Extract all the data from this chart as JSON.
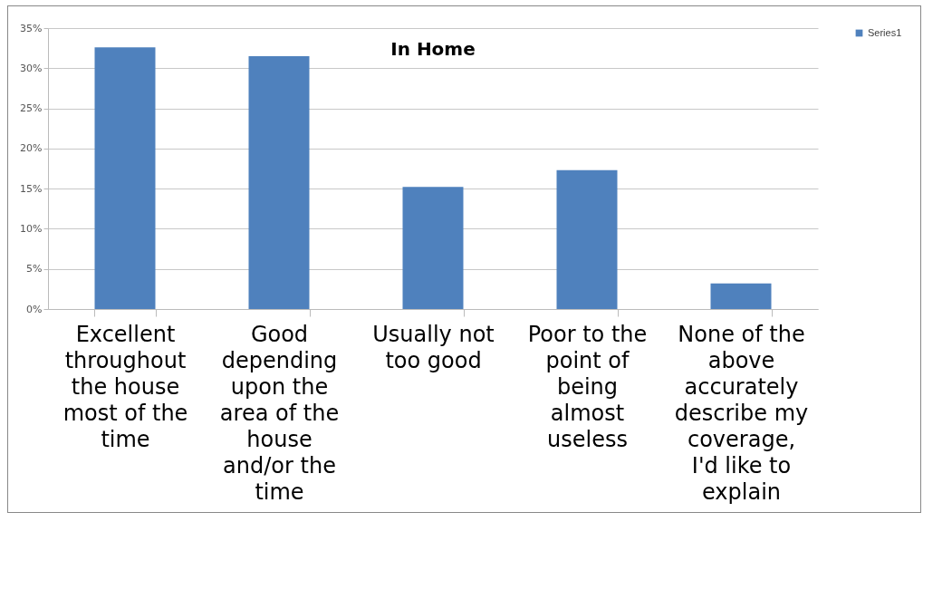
{
  "chart_data": {
    "type": "bar",
    "title": "In Home",
    "categories": [
      "Excellent throughout the house most of the time",
      "Good depending upon the area of the house and/or the time",
      "Usually not too good",
      "Poor to the point of being almost useless",
      "None of the above accurately describe my coverage, I'd like to explain"
    ],
    "series": [
      {
        "name": "Series1",
        "color": "#4f81bd",
        "values": [
          32.6,
          31.5,
          15.2,
          17.3,
          3.2
        ]
      }
    ],
    "ylim": [
      0,
      35
    ],
    "yticks": [
      {
        "value": 0,
        "label": "0%"
      },
      {
        "value": 5,
        "label": "5%"
      },
      {
        "value": 10,
        "label": "10%"
      },
      {
        "value": 15,
        "label": "15%"
      },
      {
        "value": 20,
        "label": "20%"
      },
      {
        "value": 25,
        "label": "25%"
      },
      {
        "value": 30,
        "label": "30%"
      },
      {
        "value": 35,
        "label": "35%"
      }
    ],
    "grid": "y",
    "legend": "right"
  }
}
